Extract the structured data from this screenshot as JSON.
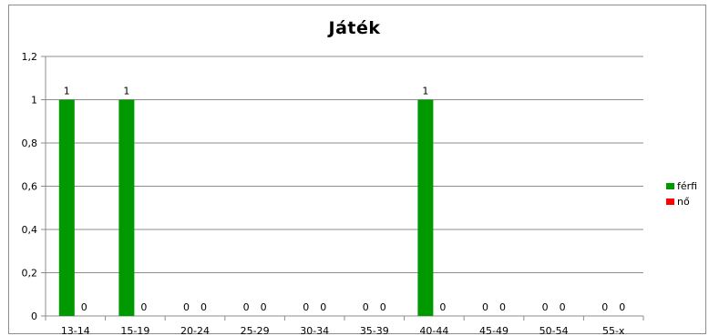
{
  "chart_data": {
    "type": "bar",
    "title": "Játék",
    "categories": [
      "13-14",
      "15-19",
      "20-24",
      "25-29",
      "30-34",
      "35-39",
      "40-44",
      "45-49",
      "50-54",
      "55-x"
    ],
    "series": [
      {
        "name": "férfi",
        "color": "#009900",
        "values": [
          1,
          1,
          0,
          0,
          0,
          0,
          1,
          0,
          0,
          0
        ]
      },
      {
        "name": "nő",
        "color": "#ff0000",
        "values": [
          0,
          0,
          0,
          0,
          0,
          0,
          0,
          0,
          0,
          0
        ]
      }
    ],
    "ylim": [
      0,
      1.2
    ],
    "yticks": [
      "0",
      "0,2",
      "0,4",
      "0,6",
      "0,8",
      "1",
      "1,2"
    ],
    "grid": true,
    "legend_position": "right",
    "data_labels": true
  }
}
